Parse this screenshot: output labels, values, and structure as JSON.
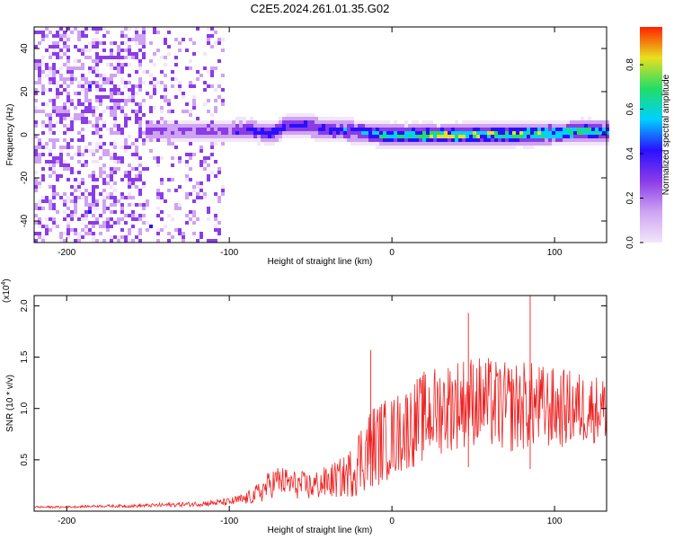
{
  "title": "C2E5.2024.261.01.35.G02",
  "colors": {
    "snr_line": "#ee2222",
    "background": "#ffffff",
    "colormap": [
      "#f2e6fb",
      "#cfa3f2",
      "#8a3ce8",
      "#2a10ff",
      "#00d0ff",
      "#22dd66",
      "#e8e020",
      "#ff2200"
    ]
  },
  "chart_data": [
    {
      "type": "heatmap",
      "name": "spectrogram",
      "xlabel": "Height of straight line (km)",
      "ylabel": "Frequency (Hz)",
      "xlim": [
        -220,
        132
      ],
      "ylim": [
        -50,
        50
      ],
      "xticks": [
        -200,
        -100,
        0,
        100
      ],
      "yticks": [
        -40,
        -20,
        0,
        20,
        40
      ],
      "colorbar": {
        "label": "Normalized spectral amplitude",
        "range": [
          0,
          0.97
        ],
        "ticks": [
          0.0,
          0.2,
          0.4,
          0.6,
          0.8
        ]
      },
      "segments": [
        {
          "x_start": -220,
          "x_end": -152,
          "content": "broadband noise",
          "amplitude": 0.12
        },
        {
          "x_start": -152,
          "x_end": -105,
          "content": "sparse noise + signal near 0 Hz",
          "amplitude": 0.05
        },
        {
          "x_start": -105,
          "x_end": 132,
          "content": "signal near 0 Hz",
          "amplitude": 0.0
        }
      ],
      "signal_track": {
        "x": [
          -153,
          -130,
          -110,
          -90,
          -75,
          -65,
          -55,
          -40,
          -25,
          -10,
          0,
          20,
          40,
          60,
          80,
          100,
          115,
          132
        ],
        "freq_hz": [
          3,
          2.5,
          2,
          3,
          1.5,
          5,
          5,
          3,
          2.5,
          1,
          0.5,
          0.5,
          0.5,
          1,
          1,
          1.5,
          2.5,
          2
        ],
        "peak_amplitude": [
          0.3,
          0.3,
          0.3,
          0.45,
          0.5,
          0.45,
          0.5,
          0.5,
          0.55,
          0.7,
          0.85,
          0.85,
          0.9,
          0.9,
          0.85,
          0.85,
          0.8,
          0.7
        ]
      }
    },
    {
      "type": "line",
      "name": "snr",
      "xlabel": "Height of straight line (km)",
      "ylabel": "SNR (10 * v/v)",
      "y_multiplier": "(x10",
      "y_multiplier_exp": "4",
      "y_multiplier_close": ")",
      "xlim": [
        -220,
        132
      ],
      "ylim": [
        0,
        2.1
      ],
      "xticks": [
        -200,
        -100,
        0,
        100
      ],
      "yticks": [
        0.5,
        1.0,
        1.5,
        2.0
      ],
      "ytick_labels": [
        "0.5",
        "1.0",
        "1.5",
        "2.0"
      ],
      "x": [
        -220,
        -200,
        -180,
        -160,
        -140,
        -120,
        -110,
        -100,
        -90,
        -85,
        -80,
        -75,
        -70,
        -60,
        -50,
        -40,
        -30,
        -25,
        -20,
        -15,
        -10,
        0,
        10,
        20,
        30,
        40,
        50,
        60,
        70,
        80,
        90,
        100,
        110,
        120,
        132
      ],
      "y": [
        0.04,
        0.04,
        0.05,
        0.05,
        0.06,
        0.07,
        0.08,
        0.09,
        0.12,
        0.15,
        0.2,
        0.26,
        0.3,
        0.26,
        0.24,
        0.28,
        0.33,
        0.38,
        0.5,
        0.6,
        0.65,
        0.72,
        0.82,
        0.92,
        1.0,
        1.05,
        1.08,
        1.05,
        1.0,
        1.03,
        1.02,
        1.0,
        1.0,
        1.0,
        1.0
      ],
      "noise_amplitude": [
        0.01,
        0.01,
        0.012,
        0.015,
        0.02,
        0.025,
        0.03,
        0.04,
        0.06,
        0.08,
        0.12,
        0.14,
        0.15,
        0.14,
        0.14,
        0.16,
        0.2,
        0.25,
        0.35,
        0.4,
        0.42,
        0.4,
        0.42,
        0.45,
        0.45,
        0.45,
        0.45,
        0.45,
        0.45,
        0.45,
        0.42,
        0.4,
        0.38,
        0.35,
        0.32
      ],
      "peaks": [
        {
          "x": -13,
          "y": 1.57
        },
        {
          "x": 47,
          "y": 1.93
        },
        {
          "x": 85,
          "y": 2.1
        }
      ]
    }
  ]
}
